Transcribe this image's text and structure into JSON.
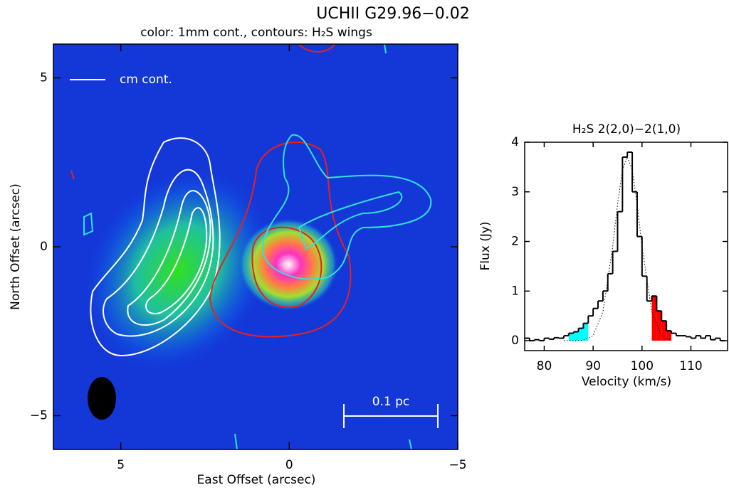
{
  "chart_data": [
    {
      "type": "image",
      "title": "UCHII G29.96−0.02",
      "subtitle": "color: 1mm cont., contours: H₂S wings",
      "x_label": "East Offset (arcsec)",
      "y_label": "North Offset (arcsec)",
      "xlim": [
        7,
        -5
      ],
      "ylim": [
        -6,
        6
      ],
      "xticks": [
        5,
        0,
        {
          "value": -5,
          "label": "−5"
        }
      ],
      "yticks": [
        {
          "value": -5,
          "label": "−5"
        },
        0,
        5
      ],
      "legend": "cm cont.",
      "scale_bar": "0.1 pc"
    },
    {
      "type": "histogram",
      "title": "H₂S 2(2,0)−2(1,0)",
      "x_label": "Velocity (km/s)",
      "y_label": "Flux (Jy)",
      "bins": [
        76,
        77,
        78,
        79,
        80,
        81,
        82,
        83,
        84,
        85,
        86,
        87,
        88,
        89,
        90,
        91,
        92,
        93,
        94,
        95,
        96,
        97,
        98,
        99,
        100,
        101,
        102,
        103,
        104,
        105,
        106,
        107,
        108,
        109,
        110,
        111,
        112,
        113,
        114,
        115,
        116,
        117
      ],
      "values": [
        0.05,
        0,
        0.02,
        0,
        0.05,
        0.03,
        0.06,
        0.05,
        0.1,
        0.15,
        0.18,
        0.25,
        0.35,
        0.5,
        0.65,
        0.8,
        1.0,
        1.35,
        1.8,
        2.6,
        3.7,
        3.8,
        3.0,
        2.1,
        1.3,
        0.8,
        0.9,
        0.6,
        0.4,
        0.2,
        0.15,
        0.1,
        0.1,
        0.08,
        0.05,
        0.1,
        0.05,
        0.1,
        0.02,
        0.05,
        0
      ],
      "color": "#000000",
      "xlim": [
        76,
        117.5
      ],
      "ylim": [
        -0.2,
        4
      ],
      "xticks": [
        80,
        90,
        100,
        110
      ],
      "yticks": [
        0,
        1,
        2,
        3,
        4
      ],
      "highlights": [
        {
          "range": [
            85,
            89
          ],
          "color": "#00ffff"
        },
        {
          "range": [
            102,
            106
          ],
          "color": "#ff0000"
        }
      ],
      "fit": {
        "x": [
          84,
          86,
          88,
          90,
          92,
          94,
          95,
          96,
          97,
          98,
          99,
          100,
          102,
          104,
          106
        ],
        "values": [
          0,
          0,
          0.01,
          0.1,
          0.58,
          1.9,
          2.75,
          3.44,
          3.7,
          3.44,
          2.75,
          1.9,
          0.58,
          0.1,
          0.01
        ]
      }
    }
  ]
}
